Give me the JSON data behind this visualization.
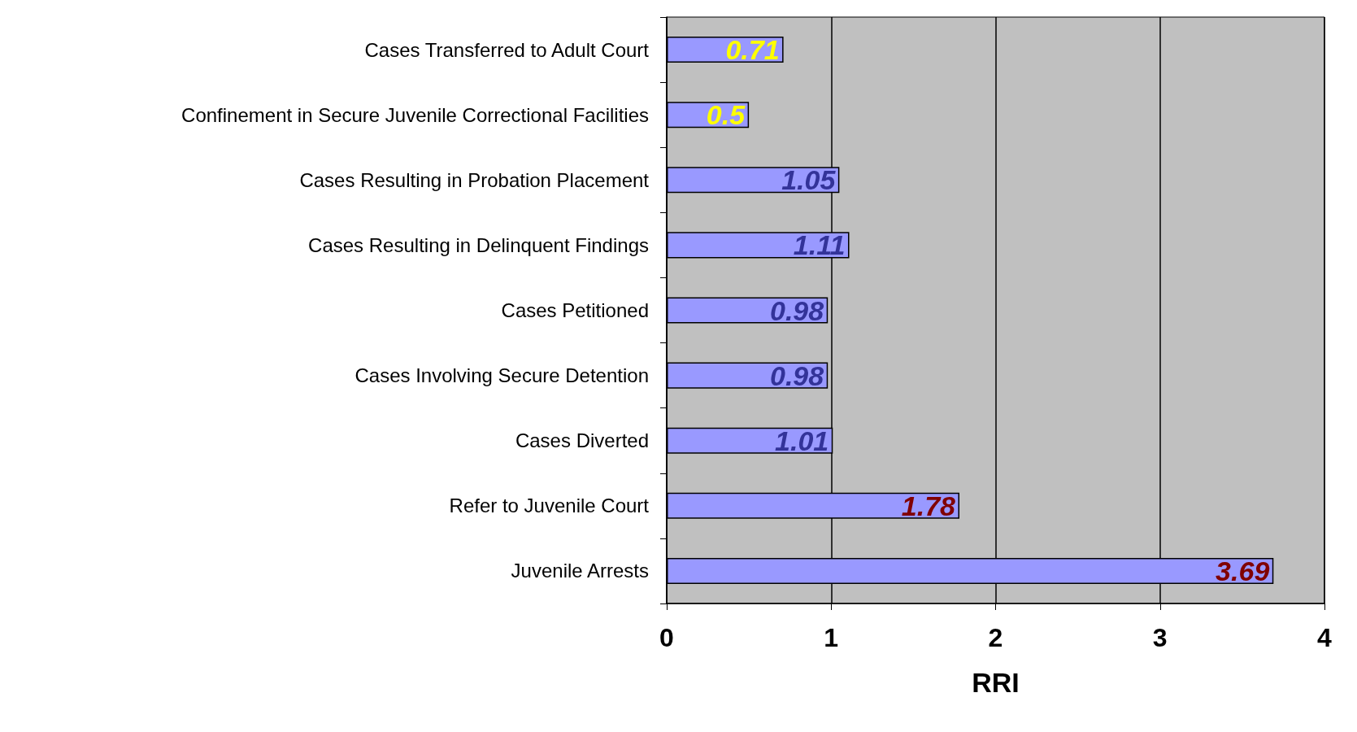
{
  "chart_data": {
    "type": "bar",
    "orientation": "horizontal",
    "xlabel": "RRI",
    "categories": [
      "Cases Transferred to Adult Court",
      "Confinement in Secure Juvenile Correctional Facilities",
      "Cases Resulting in Probation Placement",
      "Cases Resulting in Delinquent Findings",
      "Cases Petitioned",
      "Cases Involving Secure Detention",
      "Cases Diverted",
      "Refer to Juvenile Court",
      "Juvenile Arrests"
    ],
    "values": [
      0.71,
      0.5,
      1.05,
      1.11,
      0.98,
      0.98,
      1.01,
      1.78,
      3.69
    ],
    "color": "#9999ff",
    "xlim": [
      0,
      4
    ],
    "xticks": [
      0,
      1,
      2,
      3,
      4
    ],
    "grid": "x",
    "data_labels": true
  }
}
